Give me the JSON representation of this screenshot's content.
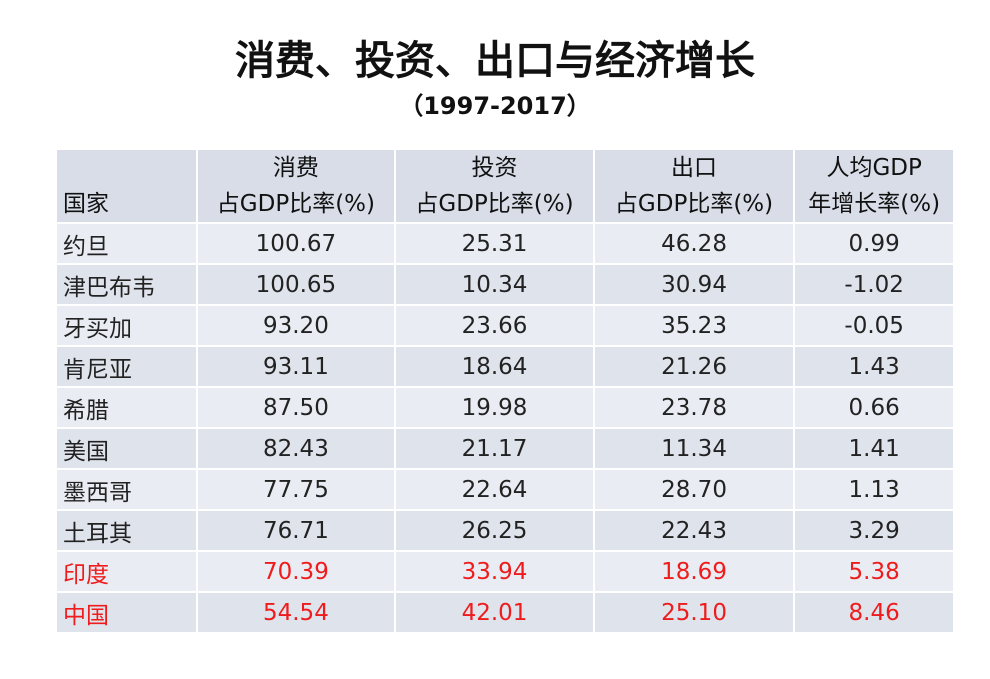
{
  "header": {
    "title": "消费、投资、出口与经济增长",
    "subtitle": "（1997-2017）"
  },
  "table": {
    "columns": [
      "国家",
      "消费\n占GDP比率(%)",
      "投资\n占GDP比率(%)",
      "出口\n占GDP比率(%)",
      "人均GDP\n年增长率(%)"
    ],
    "rows": [
      {
        "color": "#222222",
        "cells": [
          "约旦",
          "100.67",
          "25.31",
          "46.28",
          "0.99"
        ]
      },
      {
        "color": "#222222",
        "cells": [
          "津巴布韦",
          "100.65",
          "10.34",
          "30.94",
          "-1.02"
        ]
      },
      {
        "color": "#222222",
        "cells": [
          "牙买加",
          "93.20",
          "23.66",
          "35.23",
          "-0.05"
        ]
      },
      {
        "color": "#222222",
        "cells": [
          "肯尼亚",
          "93.11",
          "18.64",
          "21.26",
          "1.43"
        ]
      },
      {
        "color": "#222222",
        "cells": [
          "希腊",
          "87.50",
          "19.98",
          "23.78",
          "0.66"
        ]
      },
      {
        "color": "#222222",
        "cells": [
          "美国",
          "82.43",
          "21.17",
          "11.34",
          "1.41"
        ]
      },
      {
        "color": "#222222",
        "cells": [
          "墨西哥",
          "77.75",
          "22.64",
          "28.70",
          "1.13"
        ]
      },
      {
        "color": "#222222",
        "cells": [
          "土耳其",
          "76.71",
          "26.25",
          "22.43",
          "3.29"
        ]
      },
      {
        "color": "#ee1c1c",
        "cells": [
          "印度",
          "70.39",
          "33.94",
          "18.69",
          "5.38"
        ]
      },
      {
        "color": "#ee1c1c",
        "cells": [
          "中国",
          "54.54",
          "42.01",
          "25.10",
          "8.46"
        ]
      }
    ]
  }
}
